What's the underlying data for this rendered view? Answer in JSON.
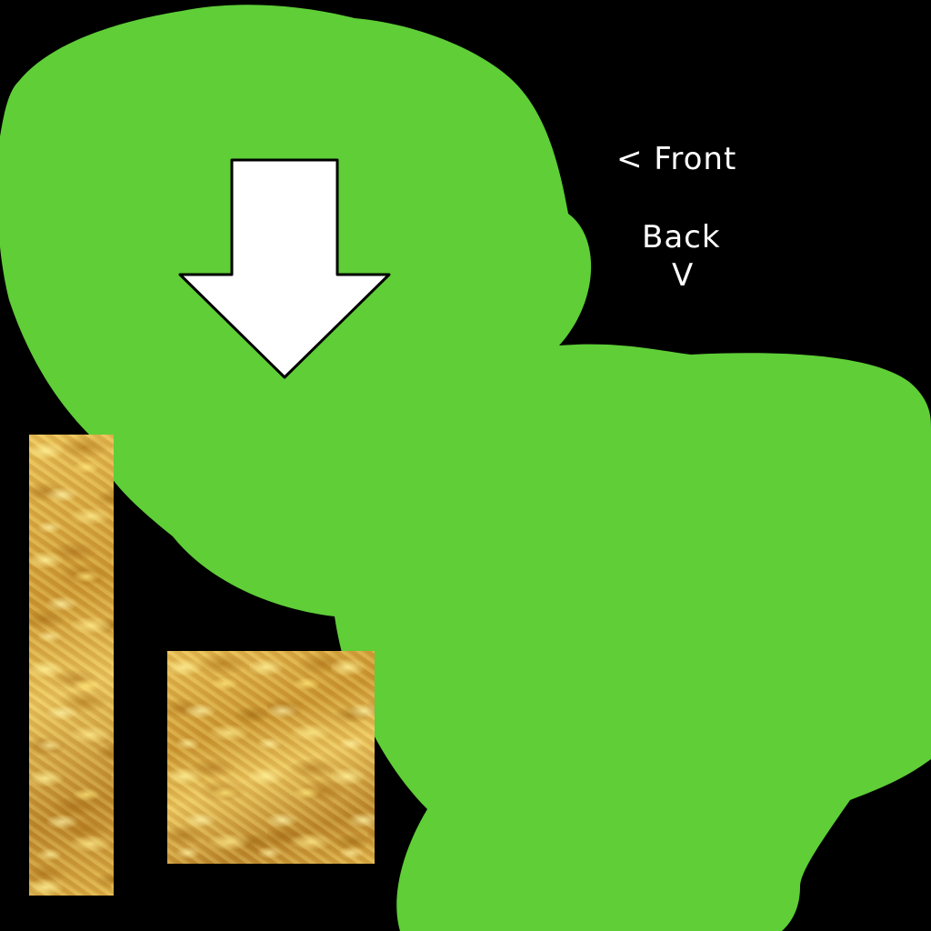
{
  "canvas": {
    "background_color": "#000000"
  },
  "blob": {
    "color": "#5fce37"
  },
  "arrow": {
    "icon": "down-arrow-icon",
    "fill_color": "#ffffff",
    "stroke_color": "#000000"
  },
  "labels": {
    "front": "< Front",
    "back": "Back",
    "back_arrow": "V"
  },
  "gold_pieces": {
    "texture": "gold-foil",
    "color": "#d7a83a"
  }
}
